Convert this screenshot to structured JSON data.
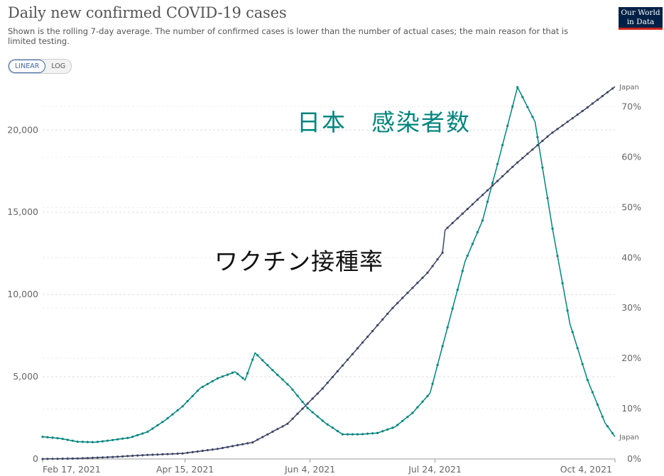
{
  "title": "Daily new confirmed COVID-19 cases",
  "subtitle": "Shown is the rolling 7-day average. The number of confirmed cases is lower than the number of actual cases; the main reason for that is limited testing.",
  "logo": {
    "line1": "Our World",
    "line2": "in Data"
  },
  "scale_toggle": {
    "linear": "LINEAR",
    "log": "LOG",
    "selected": "LINEAR"
  },
  "annotations": {
    "cases": "日本　感染者数",
    "vaccination": "ワクチン接種率"
  },
  "colors": {
    "cases": "#00847e",
    "vaccination": "#3c4465",
    "grid": "#dddddd"
  },
  "chart_data": {
    "type": "line",
    "x_ticks": [
      "Feb 17, 2021",
      "Apr 15, 2021",
      "Jun 4, 2021",
      "Jul 24, 2021",
      "Oct 4, 2021"
    ],
    "x_range": [
      "2021-02-17",
      "2021-10-04"
    ],
    "y_left": {
      "ticks": [
        "0",
        "5,000",
        "10,000",
        "15,000",
        "20,000"
      ],
      "range": [
        0,
        22600
      ]
    },
    "y_right": {
      "ticks": [
        "0%",
        "10%",
        "20%",
        "30%",
        "40%",
        "50%",
        "60%",
        "70%"
      ],
      "range": [
        0,
        75
      ]
    },
    "grid": true,
    "series": [
      {
        "name": "Japan",
        "axis": "left",
        "color": "#00847e",
        "points": [
          [
            "2021-02-17",
            1350
          ],
          [
            "2021-02-24",
            1250
          ],
          [
            "2021-03-03",
            1050
          ],
          [
            "2021-03-10",
            1020
          ],
          [
            "2021-03-17",
            1150
          ],
          [
            "2021-03-24",
            1300
          ],
          [
            "2021-03-31",
            1650
          ],
          [
            "2021-04-07",
            2350
          ],
          [
            "2021-04-14",
            3200
          ],
          [
            "2021-04-21",
            4300
          ],
          [
            "2021-04-28",
            4900
          ],
          [
            "2021-05-05",
            5300
          ],
          [
            "2021-05-09",
            4800
          ],
          [
            "2021-05-13",
            6450
          ],
          [
            "2021-05-20",
            5400
          ],
          [
            "2021-05-27",
            4400
          ],
          [
            "2021-06-03",
            3100
          ],
          [
            "2021-06-10",
            2200
          ],
          [
            "2021-06-17",
            1500
          ],
          [
            "2021-06-24",
            1500
          ],
          [
            "2021-07-01",
            1580
          ],
          [
            "2021-07-08",
            1950
          ],
          [
            "2021-07-15",
            2800
          ],
          [
            "2021-07-22",
            4000
          ],
          [
            "2021-07-29",
            8000
          ],
          [
            "2021-08-05",
            12000
          ],
          [
            "2021-08-12",
            14500
          ],
          [
            "2021-08-19",
            18500
          ],
          [
            "2021-08-26",
            22600
          ],
          [
            "2021-09-02",
            20500
          ],
          [
            "2021-09-09",
            14000
          ],
          [
            "2021-09-16",
            8200
          ],
          [
            "2021-09-23",
            4800
          ],
          [
            "2021-09-30",
            2200
          ],
          [
            "2021-10-04",
            1350
          ]
        ]
      },
      {
        "name": "Japan",
        "axis": "right",
        "color": "#3c4465",
        "points": [
          [
            "2021-02-17",
            0
          ],
          [
            "2021-03-03",
            0.1
          ],
          [
            "2021-03-17",
            0.4
          ],
          [
            "2021-03-31",
            0.8
          ],
          [
            "2021-04-14",
            1.1
          ],
          [
            "2021-04-28",
            2.0
          ],
          [
            "2021-05-12",
            3.3
          ],
          [
            "2021-05-26",
            7.0
          ],
          [
            "2021-06-09",
            14.0
          ],
          [
            "2021-06-23",
            22.0
          ],
          [
            "2021-07-07",
            30.0
          ],
          [
            "2021-07-21",
            37.0
          ],
          [
            "2021-07-27",
            41.0
          ],
          [
            "2021-07-28",
            45.5
          ],
          [
            "2021-08-11",
            52.0
          ],
          [
            "2021-08-25",
            58.5
          ],
          [
            "2021-09-08",
            64.5
          ],
          [
            "2021-09-22",
            69.5
          ],
          [
            "2021-10-04",
            74.0
          ]
        ]
      }
    ]
  }
}
